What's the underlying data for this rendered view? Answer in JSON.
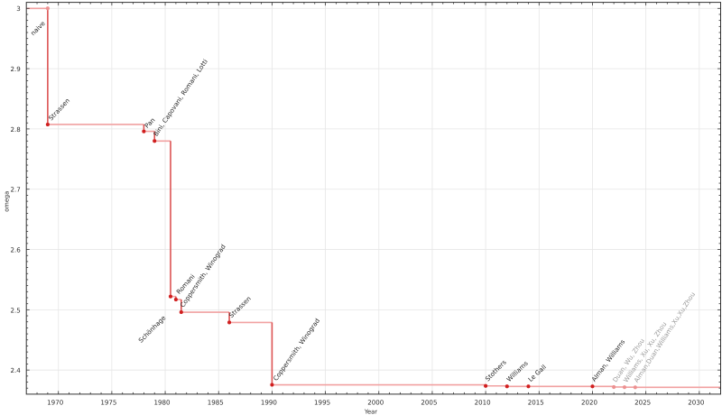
{
  "chart_data": {
    "type": "line",
    "drawstyle": "steps-post",
    "title": "",
    "xlabel": "Year",
    "ylabel": "omega",
    "xlim": [
      1967,
      2032
    ],
    "ylim": [
      2.36,
      3.01
    ],
    "x_major_ticks": [
      1970,
      1975,
      1980,
      1985,
      1990,
      1995,
      2000,
      2005,
      2010,
      2015,
      2020,
      2025,
      2030
    ],
    "x_minor_step": 1,
    "y_major_ticks": [
      3,
      2.9,
      2.8,
      2.7,
      2.6,
      2.5,
      2.4
    ],
    "y_major_tick_labels": [
      "3",
      "2.9",
      "2.8",
      "2.7",
      "2.6",
      "2.5",
      "2.4"
    ],
    "y_minor_step": 0.01,
    "grid": "major",
    "legend": "none",
    "points": [
      {
        "x": 1969,
        "y": 3.0,
        "label": "naive",
        "marker": "light",
        "label_color": "black",
        "label_side": "below",
        "label_angle": 45,
        "label_offset": [
          -2.5,
          17
        ]
      },
      {
        "x": 1969,
        "y": 2.8074,
        "label": "Strassen",
        "marker": "dark",
        "label_color": "black",
        "label_side": "above",
        "label_angle": 47,
        "label_offset": [
          4,
          -4
        ]
      },
      {
        "x": 1978,
        "y": 2.796,
        "label": "Pan",
        "marker": "dark",
        "label_color": "black",
        "label_side": "above",
        "label_angle": 45,
        "label_offset": [
          3.8,
          -3.2
        ]
      },
      {
        "x": 1979,
        "y": 2.78,
        "label": "Bini, Capovani, Romani, Lotti",
        "marker": "dark",
        "label_color": "black",
        "label_side": "above",
        "label_angle": 56
      },
      {
        "x": 1980.5,
        "y": 2.522,
        "label": "Schönhage",
        "marker": "dark",
        "label_color": "black",
        "label_side": "below",
        "label_angle": 45,
        "label_offset": [
          -5,
          24
        ]
      },
      {
        "x": 1981,
        "y": 2.517,
        "label": "Romani",
        "marker": "dark",
        "label_color": "black",
        "label_side": "above",
        "label_angle": 48.5,
        "label_offset": [
          3.8,
          -5.6
        ]
      },
      {
        "x": 1981.5,
        "y": 2.496,
        "label": "Coppersmith, Winograd",
        "marker": "dark",
        "label_color": "black",
        "label_side": "above",
        "label_angle": 55.5
      },
      {
        "x": 1986,
        "y": 2.479,
        "label": "Strassen",
        "marker": "dark",
        "label_color": "black",
        "label_side": "above",
        "label_angle": 44
      },
      {
        "x": 1990,
        "y": 2.3755,
        "label": "Coppersmith, Winograd",
        "marker": "dark",
        "label_color": "black",
        "label_side": "above",
        "label_angle": 54.5,
        "label_offset": [
          5,
          -4
        ]
      },
      {
        "x": 2010,
        "y": 2.3737,
        "label": "Stothers",
        "marker": "dark",
        "label_color": "black",
        "label_side": "above",
        "label_angle": 45.5
      },
      {
        "x": 2012,
        "y": 2.3729,
        "label": "Williams",
        "marker": "dark",
        "label_color": "black",
        "label_side": "above",
        "label_angle": 44
      },
      {
        "x": 2014,
        "y": 2.3728639,
        "label": "Le Gall",
        "marker": "dark",
        "label_color": "black",
        "label_side": "above",
        "label_angle": 42.5
      },
      {
        "x": 2020,
        "y": 2.3728596,
        "label": "Alman, Williams",
        "marker": "dark",
        "label_color": "black",
        "label_side": "above",
        "label_angle": 53
      },
      {
        "x": 2022,
        "y": 2.371866,
        "label": "Duan, Wu, Zhou",
        "marker": "light",
        "label_color": "gray",
        "label_side": "above",
        "label_angle": 56
      },
      {
        "x": 2023,
        "y": 2.371552,
        "label": "Williams, Xu, Xu, Zhou",
        "marker": "light",
        "label_color": "gray",
        "label_side": "above",
        "label_angle": 56
      },
      {
        "x": 2024,
        "y": 2.371339,
        "label": "Alman,Duan,Williams,Xu,Xu,Zhou",
        "marker": "light",
        "label_color": "gray",
        "label_side": "above",
        "label_angle": 57
      }
    ],
    "colors": {
      "step_line": "#f1a1a1",
      "drop_line": "#dc5353",
      "marker_dark": "#d01f1f",
      "marker_light": "#ec9191",
      "label_black": "#262626",
      "label_gray": "#9a9a9a",
      "axis": "#333333",
      "tick_label": "#2e2e2e",
      "grid": "#e6e6e6",
      "background": "#ffffff"
    }
  }
}
